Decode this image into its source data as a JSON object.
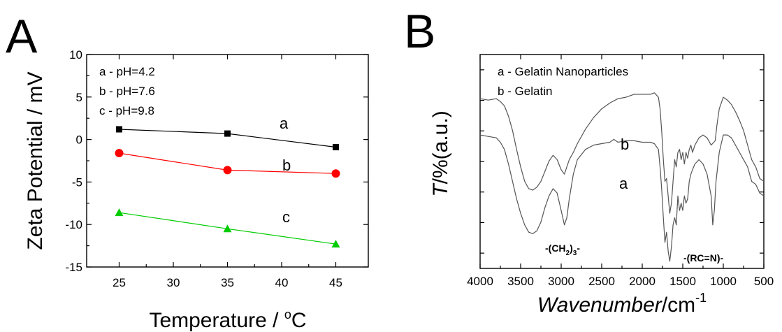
{
  "chart_data": [
    {
      "type": "line",
      "panel_label": "A",
      "xlabel_text": "Temperature / ",
      "xlabel_sup": "o",
      "xlabel_unit": "C",
      "ylabel": "Zeta Potential / mV",
      "xlim": [
        22,
        48
      ],
      "ylim": [
        -15,
        10
      ],
      "xticks": [
        25,
        30,
        35,
        40,
        45
      ],
      "yticks": [
        10,
        5,
        0,
        -5,
        -10,
        -15
      ],
      "legend_position": "top-left",
      "legend": [
        "a - pH=4.2",
        "b - pH=7.6",
        "c - pH=9.8"
      ],
      "x": [
        25,
        35,
        45
      ],
      "series": [
        {
          "label": "a",
          "color": "#000000",
          "marker": "square",
          "values": [
            1.2,
            0.7,
            -0.9
          ]
        },
        {
          "label": "b",
          "color": "#ff0000",
          "marker": "circle",
          "values": [
            -1.6,
            -3.6,
            -4.0
          ]
        },
        {
          "label": "c",
          "color": "#00cc00",
          "marker": "triangle",
          "values": [
            -8.6,
            -10.5,
            -12.3
          ]
        }
      ]
    },
    {
      "type": "line",
      "panel_label": "B",
      "ylabel_italic": "T",
      "ylabel_rest": "/%(a.u.)",
      "xlabel_italic": "Wavenumber",
      "xlabel_unit": "/cm",
      "xlabel_sup": "-1",
      "xlim": [
        4000,
        500
      ],
      "xticks": [
        4000,
        3500,
        3000,
        2500,
        2000,
        1500,
        1000,
        500
      ],
      "legend_position": "top-left",
      "legend": [
        "a - Gelatin Nanoparticles",
        "b - Gelatin"
      ],
      "annotations": [
        {
          "text_main": "-(CH",
          "sub": "2",
          "close": ")",
          "sub2": "3",
          "tail": "-",
          "x": 3230
        },
        {
          "text": "-(RC=N)-",
          "x": 1380
        }
      ],
      "series": [
        {
          "label": "b",
          "color": "#555555",
          "x": [
            4000,
            3900,
            3800,
            3750,
            3700,
            3650,
            3600,
            3550,
            3500,
            3450,
            3400,
            3350,
            3300,
            3250,
            3200,
            3150,
            3100,
            3050,
            3000,
            2960,
            2930,
            2900,
            2850,
            2800,
            2700,
            2600,
            2500,
            2400,
            2300,
            2200,
            2100,
            2000,
            1900,
            1850,
            1800,
            1780,
            1760,
            1740,
            1720,
            1700,
            1680,
            1660,
            1640,
            1620,
            1600,
            1580,
            1560,
            1540,
            1520,
            1500,
            1480,
            1460,
            1440,
            1420,
            1400,
            1380,
            1350,
            1300,
            1250,
            1200,
            1150,
            1100,
            1080,
            1050,
            1000,
            950,
            900,
            850,
            800,
            750,
            700,
            650,
            600,
            550,
            500
          ],
          "values": [
            0.87,
            0.86,
            0.87,
            0.85,
            0.82,
            0.75,
            0.65,
            0.52,
            0.4,
            0.3,
            0.25,
            0.24,
            0.26,
            0.3,
            0.37,
            0.44,
            0.48,
            0.45,
            0.38,
            0.35,
            0.4,
            0.45,
            0.5,
            0.56,
            0.66,
            0.74,
            0.8,
            0.84,
            0.87,
            0.88,
            0.9,
            0.9,
            0.9,
            0.91,
            0.88,
            0.8,
            0.65,
            0.45,
            0.3,
            0.32,
            0.2,
            0.08,
            0.15,
            0.3,
            0.45,
            0.4,
            0.5,
            0.52,
            0.45,
            0.5,
            0.42,
            0.5,
            0.46,
            0.52,
            0.55,
            0.5,
            0.55,
            0.6,
            0.62,
            0.6,
            0.55,
            0.58,
            0.68,
            0.8,
            0.88,
            0.86,
            0.83,
            0.78,
            0.72,
            0.65,
            0.55,
            0.45,
            0.4,
            0.32,
            0.3
          ]
        },
        {
          "label": "a",
          "color": "#555555",
          "x": [
            4000,
            3900,
            3800,
            3750,
            3700,
            3650,
            3600,
            3550,
            3500,
            3450,
            3400,
            3350,
            3300,
            3250,
            3200,
            3150,
            3100,
            3050,
            3000,
            2960,
            2930,
            2900,
            2850,
            2800,
            2700,
            2600,
            2500,
            2400,
            2350,
            2300,
            2200,
            2100,
            2000,
            1900,
            1850,
            1800,
            1780,
            1760,
            1740,
            1720,
            1700,
            1680,
            1660,
            1640,
            1620,
            1600,
            1580,
            1560,
            1540,
            1520,
            1500,
            1480,
            1460,
            1440,
            1420,
            1400,
            1380,
            1350,
            1300,
            1250,
            1200,
            1150,
            1130,
            1110,
            1090,
            1050,
            1000,
            950,
            900,
            850,
            800,
            750,
            700,
            650,
            600,
            550,
            500
          ],
          "values": [
            0.62,
            0.61,
            0.6,
            0.57,
            0.52,
            0.42,
            0.3,
            0.18,
            0.08,
            0.0,
            -0.05,
            -0.06,
            -0.04,
            0.02,
            0.12,
            0.2,
            0.25,
            0.22,
            0.1,
            0.0,
            0.05,
            0.18,
            0.35,
            0.45,
            0.52,
            0.55,
            0.56,
            0.57,
            0.59,
            0.57,
            0.58,
            0.58,
            0.57,
            0.57,
            0.56,
            0.52,
            0.4,
            0.25,
            0.05,
            -0.12,
            -0.05,
            -0.18,
            -0.25,
            -0.15,
            0.0,
            0.05,
            0.0,
            0.2,
            0.1,
            0.15,
            0.1,
            0.2,
            0.15,
            0.18,
            0.3,
            0.35,
            0.38,
            0.42,
            0.45,
            0.42,
            0.35,
            0.2,
            0.0,
            0.1,
            0.3,
            0.5,
            0.62,
            0.62,
            0.6,
            0.55,
            0.5,
            0.45,
            0.4,
            0.3,
            0.28,
            0.22,
            0.2
          ]
        }
      ]
    }
  ]
}
